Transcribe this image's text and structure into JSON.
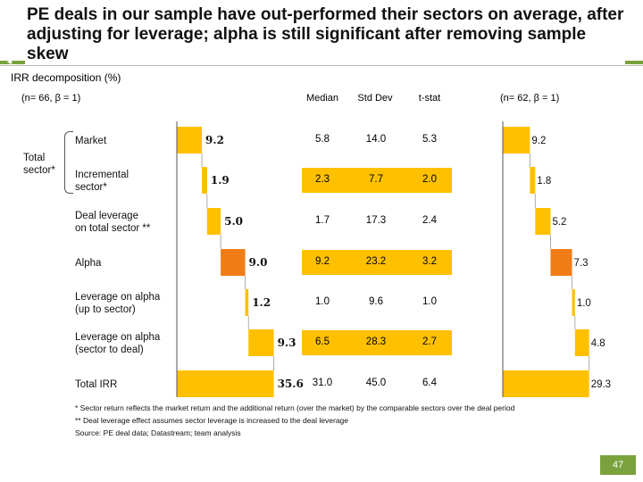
{
  "title": "PE deals in our sample have out-performed their sectors on average, after adjusting for leverage; alpha is still significant after removing sample skew",
  "subtitle": "IRR decomposition (%)",
  "left_header": "(n= 66, β = 1)",
  "right_header": "(n= 62, β = 1)",
  "table_headers": [
    "Median",
    "Std Dev",
    "t-stat"
  ],
  "group_label": "Total sector*",
  "colors": {
    "bar": "#ffc000",
    "alpha": "#f07d16",
    "accent": "#7aa23c"
  },
  "chart_data": [
    {
      "type": "bar",
      "title": "(n= 66, β = 1)",
      "subtitle": "IRR decomposition (%)",
      "orientation": "horizontal-waterfall",
      "categories": [
        "Market",
        "Incremental sector*",
        "Deal leverage on total sector **",
        "Alpha",
        "Leverage on alpha (up to sector)",
        "Leverage on alpha (sector to deal)",
        "Total IRR"
      ],
      "values": [
        9.2,
        1.9,
        5.0,
        9.0,
        1.2,
        9.3,
        35.6
      ],
      "labels": [
        "9.2",
        "1.9",
        "5.0",
        "9.0",
        "1.2",
        "9.3",
        "35.6"
      ],
      "total_index": 6
    },
    {
      "type": "table",
      "columns": [
        "Median",
        "Std Dev",
        "t-stat"
      ],
      "rows": [
        [
          "5.8",
          "14.0",
          "5.3"
        ],
        [
          "2.3",
          "7.7",
          "2.0"
        ],
        [
          "1.7",
          "17.3",
          "2.4"
        ],
        [
          "9.2",
          "23.2",
          "3.2"
        ],
        [
          "1.0",
          "9.6",
          "1.0"
        ],
        [
          "6.5",
          "28.3",
          "2.7"
        ],
        [
          "31.0",
          "45.0",
          "6.4"
        ]
      ],
      "shaded_rows": [
        1,
        3,
        5
      ]
    },
    {
      "type": "bar",
      "title": "(n= 62, β = 1)",
      "orientation": "horizontal-waterfall",
      "categories": [
        "Market",
        "Incremental sector*",
        "Deal leverage on total sector **",
        "Alpha",
        "Leverage on alpha (up to sector)",
        "Leverage on alpha (sector to deal)",
        "Total IRR"
      ],
      "values": [
        9.2,
        1.8,
        5.2,
        7.3,
        1.0,
        4.8,
        29.3
      ],
      "labels": [
        "9.2",
        "1.8",
        "5.2",
        "7.3",
        "1.0",
        "4.8",
        "29.3"
      ],
      "total_index": 6
    }
  ],
  "row_labels": [
    [
      "Market"
    ],
    [
      "Incremental",
      "sector*"
    ],
    [
      "Deal leverage",
      "on total sector **"
    ],
    [
      "Alpha"
    ],
    [
      "Leverage on alpha",
      "(up to sector)"
    ],
    [
      "Leverage on alpha",
      "(sector to deal)"
    ],
    [
      "Total IRR"
    ]
  ],
  "footnotes": [
    "*  Sector return reflects the market return and the additional return (over the market) by the comparable sectors over the deal period",
    "** Deal leverage effect assumes sector leverage is increased to the deal leverage",
    "Source: PE deal data; Datastream; team analysis"
  ],
  "page_number": "47"
}
